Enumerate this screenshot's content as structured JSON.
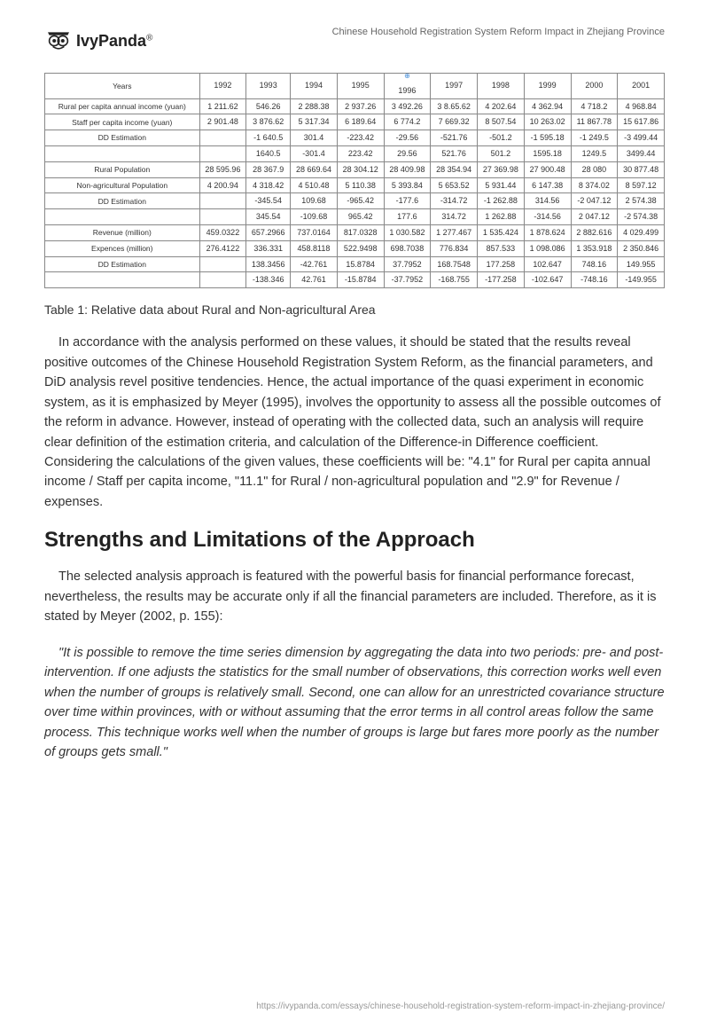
{
  "header": {
    "logo_text": "IvyPanda",
    "logo_sup": "®",
    "title": "Chinese Household Registration System Reform Impact in Zhejiang Province"
  },
  "table": {
    "years_label": "Years",
    "years": [
      "1992",
      "1993",
      "1994",
      "1995",
      "1996",
      "1997",
      "1998",
      "1999",
      "2000",
      "2001"
    ],
    "rows": [
      {
        "label": "Rural per capita annual income (yuan)",
        "cells": [
          "1 211.62",
          "546.26",
          "2 288.38",
          "2 937.26",
          "3 492.26",
          "3 8.65.62",
          "4 202.64",
          "4 362.94",
          "4 718.2",
          "4 968.84"
        ]
      },
      {
        "label": "Staff per capita income (yuan)",
        "cells": [
          "2 901.48",
          "3 876.62",
          "5 317.34",
          "6 189.64",
          "6 774.2",
          "7 669.32",
          "8 507.54",
          "10 263.02",
          "11 867.78",
          "15 617.86"
        ]
      },
      {
        "label": "DD Estimation",
        "cells": [
          "",
          "-1 640.5",
          "301.4",
          "-223.42",
          "-29.56",
          "-521.76",
          "-501.2",
          "-1 595.18",
          "-1 249.5",
          "-3 499.44"
        ]
      },
      {
        "label": "",
        "cells": [
          "",
          "1640.5",
          "-301.4",
          "223.42",
          "29.56",
          "521.76",
          "501.2",
          "1595.18",
          "1249.5",
          "3499.44"
        ]
      },
      {
        "label": "Rural Population",
        "cells": [
          "28 595.96",
          "28 367.9",
          "28 669.64",
          "28 304.12",
          "28 409.98",
          "28 354.94",
          "27 369.98",
          "27 900.48",
          "28 080",
          "30 877.48"
        ]
      },
      {
        "label": "Non-agricultural Population",
        "cells": [
          "4 200.94",
          "4 318.42",
          "4 510.48",
          "5 110.38",
          "5 393.84",
          "5 653.52",
          "5 931.44",
          "6 147.38",
          "8 374.02",
          "8 597.12"
        ]
      },
      {
        "label": "DD Estimation",
        "cells": [
          "",
          "-345.54",
          "109.68",
          "-965.42",
          "-177.6",
          "-314.72",
          "-1 262.88",
          "314.56",
          "-2 047.12",
          "2 574.38"
        ]
      },
      {
        "label": "",
        "cells": [
          "",
          "345.54",
          "-109.68",
          "965.42",
          "177.6",
          "314.72",
          "1 262.88",
          "-314.56",
          "2 047.12",
          "-2 574.38"
        ]
      },
      {
        "label": "Revenue (million)",
        "cells": [
          "459.0322",
          "657.2966",
          "737.0164",
          "817.0328",
          "1 030.582",
          "1 277.467",
          "1 535.424",
          "1 878.624",
          "2 882.616",
          "4 029.499"
        ]
      },
      {
        "label": "Expences (million)",
        "cells": [
          "276.4122",
          "336.331",
          "458.8118",
          "522.9498",
          "698.7038",
          "776.834",
          "857.533",
          "1 098.086",
          "1 353.918",
          "2 350.846"
        ]
      },
      {
        "label": "DD Estimation",
        "cells": [
          "",
          "138.3456",
          "-42.761",
          "15.8784",
          "37.7952",
          "168.7548",
          "177.258",
          "102.647",
          "748.16",
          "149.955"
        ]
      },
      {
        "label": "",
        "cells": [
          "",
          "-138.346",
          "42.761",
          "-15.8784",
          "-37.7952",
          "-168.755",
          "-177.258",
          "-102.647",
          "-748.16",
          "-149.955"
        ]
      }
    ]
  },
  "caption": "Table 1: Relative data about Rural and Non-agricultural Area",
  "para1": "In accordance with the analysis performed on these values, it should be stated that the results reveal positive outcomes of the Chinese Household Registration System Reform, as the financial parameters, and DiD analysis revel positive tendencies. Hence, the actual importance of the quasi experiment in economic system, as it is emphasized by Meyer (1995), involves the opportunity to assess all the possible outcomes of the reform in advance. However, instead of operating with the collected data, such an analysis will require clear definition of the estimation criteria, and calculation of the Difference-in Difference coefficient. Considering the calculations of the given values, these coefficients will be: \"4.1\" for Rural per capita annual income / Staff per capita income, \"11.1\" for Rural / non-agricultural population and \"2.9\" for Revenue / expenses.",
  "heading": "Strengths and Limitations of the Approach",
  "para2": "The selected analysis approach is featured with the powerful basis for financial performance forecast, nevertheless, the results may be accurate only if all the financial parameters are included. Therefore, as it is stated by Meyer (2002, p. 155):",
  "quote": "\"It is possible to remove the time series dimension by aggregating the data into two periods: pre- and post-intervention. If one adjusts the statistics for the small number of observations, this correction works well even when the number of groups is relatively small. Second, one can allow for an unrestricted covariance structure over time within provinces, with or without assuming that the error terms in all control areas follow the same process. This technique works well when the number of groups is large but fares more poorly as the number of groups gets small.\"",
  "footer_url": "https://ivypanda.com/essays/chinese-household-registration-system-reform-impact-in-zhejiang-province/"
}
